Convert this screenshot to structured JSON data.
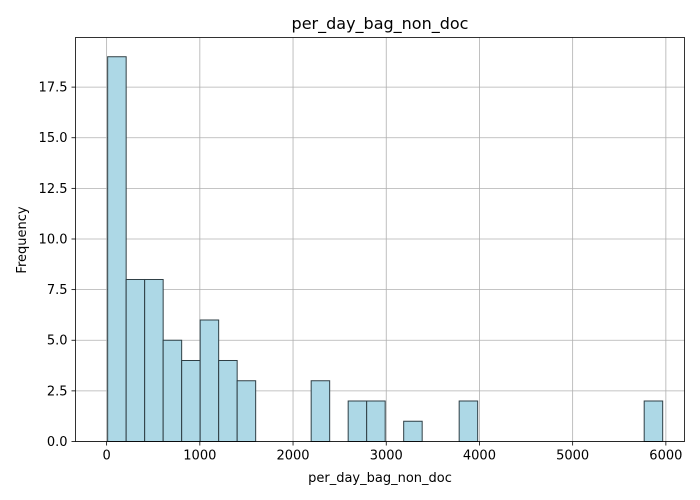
{
  "chart_data": {
    "type": "bar",
    "title": "per_day_bag_non_doc",
    "xlabel": "per_day_bag_non_doc",
    "ylabel": "Frequency",
    "xlim": [
      -334,
      6200
    ],
    "ylim": [
      0,
      19.95
    ],
    "grid": true,
    "colors": {
      "bar_fill": "#add8e6",
      "bar_edge": "#2f3f45",
      "grid": "#b0b0b0",
      "axis": "#000000"
    },
    "xticks": [
      {
        "value": 0,
        "label": "0"
      },
      {
        "value": 1000,
        "label": "1000"
      },
      {
        "value": 2000,
        "label": "2000"
      },
      {
        "value": 3000,
        "label": "3000"
      },
      {
        "value": 4000,
        "label": "4000"
      },
      {
        "value": 5000,
        "label": "5000"
      },
      {
        "value": 6000,
        "label": "6000"
      }
    ],
    "yticks": [
      {
        "value": 0,
        "label": "0.0"
      },
      {
        "value": 2.5,
        "label": "2.5"
      },
      {
        "value": 5,
        "label": "5.0"
      },
      {
        "value": 7.5,
        "label": "7.5"
      },
      {
        "value": 10,
        "label": "10.0"
      },
      {
        "value": 12.5,
        "label": "12.5"
      },
      {
        "value": 15,
        "label": "15.0"
      },
      {
        "value": 17.5,
        "label": "17.5"
      }
    ],
    "bin_start": 11,
    "bin_width": 198.5,
    "values": [
      19,
      8,
      8,
      5,
      4,
      6,
      4,
      3,
      0,
      0,
      0,
      3,
      0,
      2,
      2,
      0,
      1,
      0,
      0,
      2,
      0,
      0,
      0,
      0,
      0,
      0,
      0,
      0,
      0,
      2
    ]
  }
}
